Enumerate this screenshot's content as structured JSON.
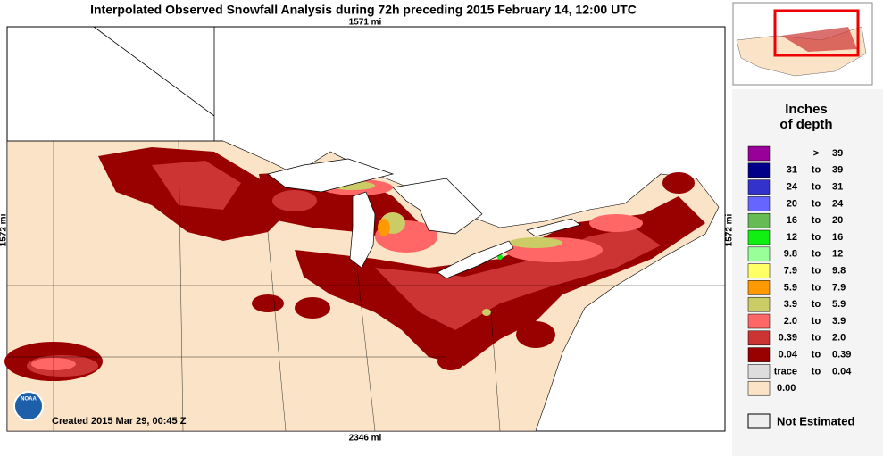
{
  "header": {
    "title": "Interpolated Observed Snowfall Analysis during 72h preceding 2015 February 14, 12:00 UTC"
  },
  "map": {
    "top_scale": "1571 mi",
    "left_scale": "1572 mi",
    "right_scale": "1572 mi",
    "bottom_scale": "2346 mi",
    "created": "Created 2015 Mar 29, 00:45 Z",
    "logo": "NOAA"
  },
  "legend": {
    "title_line1": "Inches",
    "title_line2": "of depth",
    "items": [
      {
        "sep": ">",
        "high": "39",
        "color": "#990099"
      },
      {
        "low": "31",
        "sep": "to",
        "high": "39",
        "color": "#000088"
      },
      {
        "low": "24",
        "sep": "to",
        "high": "31",
        "color": "#3333cc"
      },
      {
        "low": "20",
        "sep": "to",
        "high": "24",
        "color": "#6666ff"
      },
      {
        "low": "16",
        "sep": "to",
        "high": "20",
        "color": "#66bb55"
      },
      {
        "low": "12",
        "sep": "to",
        "high": "16",
        "color": "#11ee11"
      },
      {
        "low": "9.8",
        "sep": "to",
        "high": "12",
        "color": "#99ff99"
      },
      {
        "low": "7.9",
        "sep": "to",
        "high": "9.8",
        "color": "#ffff66"
      },
      {
        "low": "5.9",
        "sep": "to",
        "high": "7.9",
        "color": "#ff9900"
      },
      {
        "low": "3.9",
        "sep": "to",
        "high": "5.9",
        "color": "#cccc66"
      },
      {
        "low": "2.0",
        "sep": "to",
        "high": "3.9",
        "color": "#ff6666"
      },
      {
        "low": "0.39",
        "sep": "to",
        "high": "2.0",
        "color": "#cc3333"
      },
      {
        "low": "0.04",
        "sep": "to",
        "high": "0.39",
        "color": "#990000"
      },
      {
        "low": "trace",
        "sep": "to",
        "high": "0.04",
        "color": "#dddddd"
      },
      {
        "low": "0.00",
        "color": "#fae3c6"
      }
    ],
    "not_estimated": "Not Estimated"
  }
}
